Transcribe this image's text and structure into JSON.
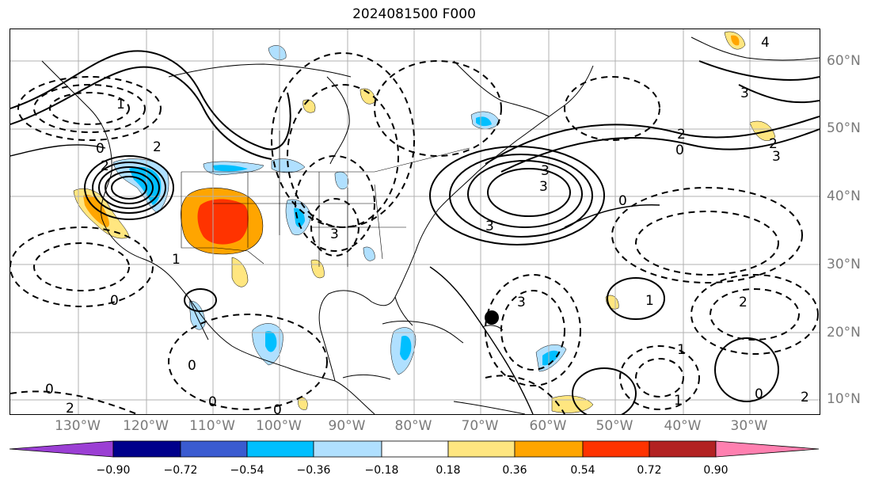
{
  "title": "2024081500 F000",
  "lat_labels": [
    "60°N",
    "50°N",
    "40°N",
    "30°N",
    "20°N",
    "10°N"
  ],
  "lon_labels": [
    "130°W",
    "120°W",
    "110°W",
    "100°W",
    "90°W",
    "80°W",
    "70°W",
    "60°W",
    "50°W",
    "40°W",
    "30°W"
  ],
  "colorbar": {
    "tick_labels": [
      "−0.90",
      "−0.72",
      "−0.54",
      "−0.36",
      "−0.18",
      "0.18",
      "0.36",
      "0.54",
      "0.72",
      "0.90"
    ],
    "colors": [
      "#9b3fd4",
      "#00008b",
      "#3a5bd0",
      "#00bfff",
      "#b0e0ff",
      "#ffffff",
      "#ffe680",
      "#ffa500",
      "#ff3300",
      "#b22222",
      "#ff80b0"
    ]
  },
  "contour_labels": [
    "0",
    "1",
    "2",
    "3",
    "4",
    "-0",
    "-1",
    "-2",
    "-3"
  ],
  "marker": "storm-center-dot"
}
